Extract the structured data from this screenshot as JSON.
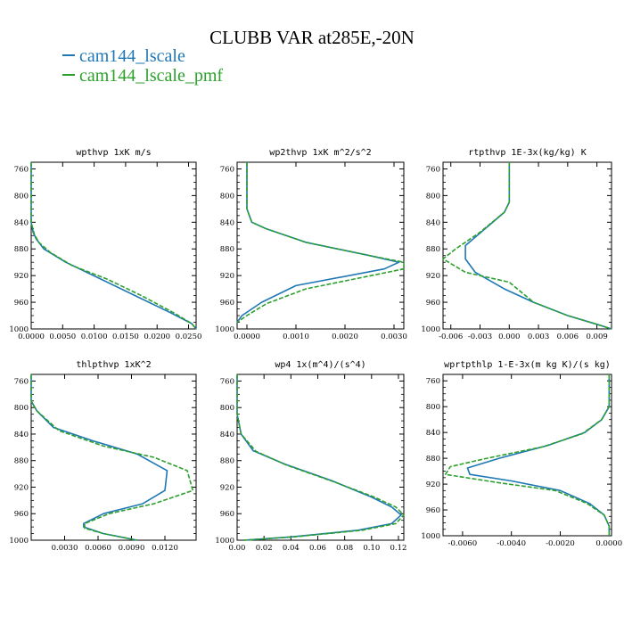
{
  "figure": {
    "title": "CLUBB VAR at285E,-20N",
    "legend": [
      {
        "label": "cam144_lscale",
        "color": "#1f77b4"
      },
      {
        "label": "cam144_lscale_pmf",
        "color": "#2ca02c"
      }
    ]
  },
  "chart_data": [
    {
      "type": "line",
      "title": "wpthvp  1xK m/s",
      "xlim": [
        0,
        0.0262
      ],
      "ylim": [
        1000,
        750
      ],
      "xticks": [
        "0.0000",
        "0.0050",
        "0.0100",
        "0.0150",
        "0.0200",
        "0.0250"
      ],
      "xtick_values": [
        0,
        0.005,
        0.01,
        0.015,
        0.02,
        0.025
      ],
      "yticks": [
        "760",
        "800",
        "840",
        "880",
        "920",
        "960",
        "1000"
      ],
      "ytick_values": [
        760,
        800,
        840,
        880,
        920,
        960,
        1000
      ],
      "series": [
        {
          "name": "cam144_lscale",
          "style": "solid",
          "x": [
            0,
            0,
            0.0003,
            0.0008,
            0.002,
            0.0055,
            0.011,
            0.0165,
            0.022,
            0.0255,
            0.0262
          ],
          "y": [
            750,
            840,
            855,
            865,
            880,
            900,
            925,
            950,
            975,
            992,
            1000
          ]
        },
        {
          "name": "cam144_lscale_pmf",
          "style": "dashed",
          "x": [
            0,
            0,
            0.0005,
            0.0012,
            0.003,
            0.0065,
            0.012,
            0.0175,
            0.0225,
            0.0255,
            0.0262
          ],
          "y": [
            750,
            840,
            858,
            870,
            885,
            905,
            925,
            950,
            975,
            992,
            1000
          ]
        }
      ]
    },
    {
      "type": "line",
      "title": "wp2thvp  1xK m^2/s^2",
      "xlim": [
        -0.0002,
        0.0032
      ],
      "ylim": [
        1000,
        750
      ],
      "xticks": [
        "0.0000",
        "0.0010",
        "0.0020",
        "0.0030"
      ],
      "xtick_values": [
        0,
        0.001,
        0.002,
        0.003
      ],
      "yticks": [
        "760",
        "800",
        "840",
        "880",
        "920",
        "960",
        "1000"
      ],
      "ytick_values": [
        760,
        800,
        840,
        880,
        920,
        960,
        1000
      ],
      "series": [
        {
          "name": "cam144_lscale",
          "style": "solid",
          "x": [
            0,
            0,
            0.0001,
            0.0004,
            0.0012,
            0.0025,
            0.0031,
            0.0028,
            0.001,
            0.0003,
            -0.0001,
            -0.0002
          ],
          "y": [
            750,
            820,
            840,
            850,
            870,
            890,
            900,
            910,
            935,
            960,
            980,
            990
          ]
        },
        {
          "name": "cam144_lscale_pmf",
          "style": "dashed",
          "x": [
            0,
            0,
            0.0001,
            0.0004,
            0.0012,
            0.0025,
            0.0032,
            0.0032,
            0.0012,
            0.0004,
            0.0,
            -0.0002
          ],
          "y": [
            750,
            820,
            840,
            850,
            870,
            890,
            900,
            910,
            940,
            962,
            980,
            990
          ]
        }
      ]
    },
    {
      "type": "line",
      "title": "rtpthvp  1E-3x(kg/kg) K",
      "xlim": [
        -0.0068,
        0.0105
      ],
      "ylim": [
        1000,
        750
      ],
      "xticks": [
        "-0.006",
        "-0.003",
        "0.000",
        "0.003",
        "0.006",
        "0.009"
      ],
      "xtick_values": [
        -0.006,
        -0.003,
        0,
        0.003,
        0.006,
        0.009
      ],
      "yticks": [
        "760",
        "800",
        "840",
        "880",
        "920",
        "960",
        "1000"
      ],
      "ytick_values": [
        760,
        800,
        840,
        880,
        920,
        960,
        1000
      ],
      "series": [
        {
          "name": "cam144_lscale",
          "style": "solid",
          "x": [
            0,
            0,
            -0.0005,
            -0.0025,
            -0.0045,
            -0.0045,
            -0.0035,
            -0.0005,
            0.0025,
            0.006,
            0.009,
            0.0105
          ],
          "y": [
            750,
            810,
            825,
            850,
            875,
            895,
            915,
            940,
            960,
            980,
            993,
            1000
          ]
        },
        {
          "name": "cam144_lscale_pmf",
          "style": "dashed",
          "x": [
            0,
            0,
            -0.0005,
            -0.003,
            -0.0055,
            -0.0068,
            -0.0045,
            0.0,
            0.0025,
            0.006,
            0.009,
            0.0105
          ],
          "y": [
            750,
            810,
            825,
            855,
            880,
            895,
            915,
            930,
            960,
            980,
            993,
            1000
          ]
        }
      ]
    },
    {
      "type": "line",
      "title": "thlpthvp  1xK^2",
      "xlim": [
        0,
        0.0148
      ],
      "ylim": [
        1000,
        750
      ],
      "xticks": [
        "0.0030",
        "0.0060",
        "0.0090",
        "0.0120"
      ],
      "xtick_values": [
        0.003,
        0.006,
        0.009,
        0.012
      ],
      "yticks": [
        "760",
        "800",
        "840",
        "880",
        "920",
        "960",
        "1000"
      ],
      "ytick_values": [
        760,
        800,
        840,
        880,
        920,
        960,
        1000
      ],
      "series": [
        {
          "name": "cam144_lscale",
          "style": "solid",
          "x": [
            0,
            0,
            0.0005,
            0.002,
            0.0055,
            0.0095,
            0.0122,
            0.012,
            0.01,
            0.0065,
            0.0047,
            0.0047,
            0.0065,
            0.0095
          ],
          "y": [
            750,
            790,
            805,
            830,
            850,
            870,
            895,
            925,
            945,
            960,
            975,
            980,
            990,
            1000
          ]
        },
        {
          "name": "cam144_lscale_pmf",
          "style": "dashed",
          "x": [
            0,
            0,
            0.0005,
            0.0025,
            0.0065,
            0.011,
            0.014,
            0.0145,
            0.011,
            0.007,
            0.0048,
            0.0048,
            0.0065,
            0.0095
          ],
          "y": [
            750,
            790,
            805,
            835,
            858,
            875,
            895,
            925,
            945,
            960,
            975,
            982,
            990,
            1000
          ]
        }
      ]
    },
    {
      "type": "line",
      "title": "wp4  1x(m^4)/(s^4)",
      "xlim": [
        0,
        0.124
      ],
      "ylim": [
        1000,
        750
      ],
      "xticks": [
        "0.00",
        "0.02",
        "0.04",
        "0.06",
        "0.08",
        "0.10",
        "0.12"
      ],
      "xtick_values": [
        0,
        0.02,
        0.04,
        0.06,
        0.08,
        0.1,
        0.12
      ],
      "yticks": [
        "760",
        "800",
        "840",
        "880",
        "920",
        "960",
        "1000"
      ],
      "ytick_values": [
        760,
        800,
        840,
        880,
        920,
        960,
        1000
      ],
      "series": [
        {
          "name": "cam144_lscale",
          "style": "solid",
          "x": [
            0,
            0,
            0.003,
            0.012,
            0.035,
            0.07,
            0.1,
            0.115,
            0.122,
            0.115,
            0.09,
            0.04,
            0.005
          ],
          "y": [
            750,
            810,
            840,
            865,
            885,
            910,
            935,
            950,
            962,
            975,
            985,
            995,
            1000
          ]
        },
        {
          "name": "cam144_lscale_pmf",
          "style": "dashed",
          "x": [
            0,
            0,
            0.003,
            0.014,
            0.037,
            0.072,
            0.102,
            0.118,
            0.124,
            0.118,
            0.093,
            0.042,
            0.005
          ],
          "y": [
            750,
            810,
            840,
            866,
            887,
            912,
            935,
            950,
            962,
            975,
            985,
            995,
            1000
          ]
        }
      ]
    },
    {
      "type": "line",
      "title": "wprtpthlp  1-E-3x(m kg K)/(s kg)",
      "xlim": [
        -0.0068,
        0.0001
      ],
      "ylim": [
        1000,
        750
      ],
      "xticks": [
        "-0.0060",
        "-0.0040",
        "-0.0020",
        "0.0000"
      ],
      "xtick_values": [
        -0.006,
        -0.004,
        -0.002,
        0
      ],
      "yticks": [
        "760",
        "800",
        "840",
        "880",
        "920",
        "960",
        "1000"
      ],
      "ytick_values": [
        760,
        800,
        840,
        880,
        920,
        960,
        1000
      ],
      "series": [
        {
          "name": "cam144_lscale",
          "style": "solid",
          "x": [
            0,
            0,
            -0.0003,
            -0.001,
            -0.0025,
            -0.0045,
            -0.0058,
            -0.0057,
            -0.004,
            -0.002,
            -0.0008,
            -0.0002,
            0,
            0
          ],
          "y": [
            750,
            800,
            820,
            840,
            860,
            880,
            895,
            905,
            915,
            930,
            950,
            968,
            985,
            1000
          ]
        },
        {
          "name": "cam144_lscale_pmf",
          "style": "dashed",
          "x": [
            0,
            0,
            -0.0003,
            -0.0011,
            -0.0027,
            -0.005,
            -0.0065,
            -0.0067,
            -0.0045,
            -0.0022,
            -0.0009,
            -0.0002,
            0,
            0
          ],
          "y": [
            750,
            800,
            820,
            842,
            862,
            880,
            893,
            905,
            918,
            930,
            950,
            968,
            985,
            1000
          ]
        }
      ]
    }
  ]
}
